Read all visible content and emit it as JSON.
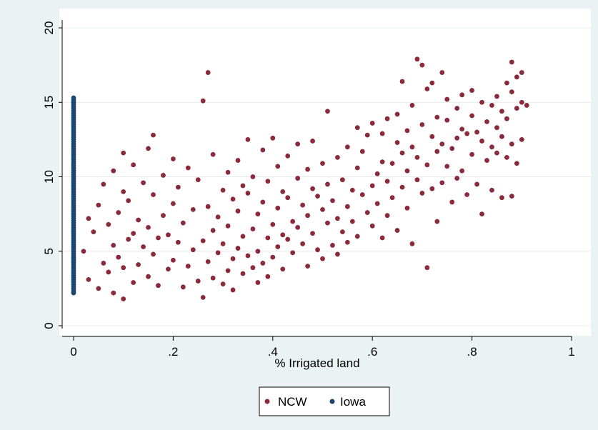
{
  "chart_data": {
    "type": "scatter",
    "xlabel": "% Irrigated land",
    "ylabel": "",
    "xlim": [
      0,
      1
    ],
    "ylim": [
      0,
      20
    ],
    "x_ticks": [
      {
        "value": 0,
        "label": "0"
      },
      {
        "value": 0.2,
        "label": ".2"
      },
      {
        "value": 0.4,
        "label": ".4"
      },
      {
        "value": 0.6,
        "label": ".6"
      },
      {
        "value": 0.8,
        "label": ".8"
      },
      {
        "value": 1,
        "label": "1"
      }
    ],
    "y_ticks": [
      {
        "value": 0,
        "label": "0"
      },
      {
        "value": 5,
        "label": "5"
      },
      {
        "value": 10,
        "label": "10"
      },
      {
        "value": 15,
        "label": "15"
      },
      {
        "value": 20,
        "label": "20"
      }
    ],
    "grid": true,
    "legend_position": "bottom",
    "series": [
      {
        "name": "NCW",
        "color": "#8b2a3a",
        "points": [
          [
            0.02,
            5.0
          ],
          [
            0.03,
            7.2
          ],
          [
            0.03,
            3.1
          ],
          [
            0.04,
            6.3
          ],
          [
            0.05,
            8.1
          ],
          [
            0.05,
            2.5
          ],
          [
            0.06,
            4.2
          ],
          [
            0.06,
            9.5
          ],
          [
            0.07,
            3.6
          ],
          [
            0.07,
            6.8
          ],
          [
            0.08,
            2.2
          ],
          [
            0.08,
            5.4
          ],
          [
            0.08,
            10.4
          ],
          [
            0.09,
            4.6
          ],
          [
            0.09,
            7.6
          ],
          [
            0.1,
            1.8
          ],
          [
            0.1,
            3.9
          ],
          [
            0.1,
            9.0
          ],
          [
            0.1,
            11.6
          ],
          [
            0.11,
            5.8
          ],
          [
            0.11,
            8.4
          ],
          [
            0.12,
            2.9
          ],
          [
            0.12,
            6.2
          ],
          [
            0.12,
            10.8
          ],
          [
            0.13,
            4.1
          ],
          [
            0.13,
            7.1
          ],
          [
            0.14,
            5.3
          ],
          [
            0.14,
            9.6
          ],
          [
            0.15,
            3.3
          ],
          [
            0.15,
            6.6
          ],
          [
            0.15,
            11.9
          ],
          [
            0.16,
            4.8
          ],
          [
            0.16,
            8.8
          ],
          [
            0.16,
            12.8
          ],
          [
            0.17,
            2.7
          ],
          [
            0.17,
            5.9
          ],
          [
            0.18,
            7.4
          ],
          [
            0.18,
            10.1
          ],
          [
            0.19,
            3.8
          ],
          [
            0.19,
            6.1
          ],
          [
            0.2,
            4.4
          ],
          [
            0.2,
            8.2
          ],
          [
            0.2,
            11.2
          ],
          [
            0.21,
            5.6
          ],
          [
            0.21,
            9.3
          ],
          [
            0.22,
            2.6
          ],
          [
            0.22,
            6.9
          ],
          [
            0.23,
            4.0
          ],
          [
            0.23,
            10.6
          ],
          [
            0.24,
            5.1
          ],
          [
            0.24,
            7.8
          ],
          [
            0.25,
            3.0
          ],
          [
            0.25,
            9.8
          ],
          [
            0.26,
            1.9
          ],
          [
            0.26,
            5.7
          ],
          [
            0.26,
            15.1
          ],
          [
            0.27,
            17.0
          ],
          [
            0.27,
            4.3
          ],
          [
            0.27,
            8.0
          ],
          [
            0.28,
            6.4
          ],
          [
            0.28,
            3.2
          ],
          [
            0.28,
            11.5
          ],
          [
            0.29,
            4.9
          ],
          [
            0.29,
            7.3
          ],
          [
            0.3,
            2.8
          ],
          [
            0.3,
            5.5
          ],
          [
            0.3,
            9.1
          ],
          [
            0.31,
            3.7
          ],
          [
            0.31,
            6.7
          ],
          [
            0.31,
            10.3
          ],
          [
            0.32,
            4.5
          ],
          [
            0.32,
            8.5
          ],
          [
            0.32,
            2.4
          ],
          [
            0.33,
            5.2
          ],
          [
            0.33,
            7.7
          ],
          [
            0.33,
            11.1
          ],
          [
            0.34,
            3.5
          ],
          [
            0.34,
            6.0
          ],
          [
            0.34,
            9.4
          ],
          [
            0.35,
            4.7
          ],
          [
            0.35,
            8.9
          ],
          [
            0.35,
            12.5
          ],
          [
            0.36,
            3.9
          ],
          [
            0.36,
            6.5
          ],
          [
            0.36,
            10.0
          ],
          [
            0.37,
            5.0
          ],
          [
            0.37,
            7.5
          ],
          [
            0.37,
            2.9
          ],
          [
            0.38,
            4.2
          ],
          [
            0.38,
            8.3
          ],
          [
            0.38,
            11.8
          ],
          [
            0.39,
            5.9
          ],
          [
            0.39,
            9.7
          ],
          [
            0.39,
            3.3
          ],
          [
            0.4,
            6.8
          ],
          [
            0.4,
            4.6
          ],
          [
            0.4,
            12.6
          ],
          [
            0.41,
            7.9
          ],
          [
            0.41,
            5.3
          ],
          [
            0.41,
            10.7
          ],
          [
            0.42,
            6.1
          ],
          [
            0.42,
            9.0
          ],
          [
            0.42,
            3.8
          ],
          [
            0.43,
            8.6
          ],
          [
            0.43,
            5.8
          ],
          [
            0.43,
            11.4
          ],
          [
            0.44,
            7.0
          ],
          [
            0.44,
            4.9
          ],
          [
            0.45,
            9.9
          ],
          [
            0.45,
            6.6
          ],
          [
            0.45,
            12.2
          ],
          [
            0.46,
            5.5
          ],
          [
            0.46,
            8.1
          ],
          [
            0.47,
            7.4
          ],
          [
            0.47,
            10.5
          ],
          [
            0.47,
            4.0
          ],
          [
            0.48,
            6.2
          ],
          [
            0.48,
            9.2
          ],
          [
            0.48,
            12.4
          ],
          [
            0.49,
            5.1
          ],
          [
            0.49,
            8.7
          ],
          [
            0.5,
            7.8
          ],
          [
            0.5,
            10.9
          ],
          [
            0.5,
            4.5
          ],
          [
            0.51,
            6.9
          ],
          [
            0.51,
            9.5
          ],
          [
            0.51,
            14.4
          ],
          [
            0.52,
            5.4
          ],
          [
            0.52,
            8.4
          ],
          [
            0.53,
            7.2
          ],
          [
            0.53,
            11.3
          ],
          [
            0.53,
            4.8
          ],
          [
            0.54,
            9.8
          ],
          [
            0.54,
            6.3
          ],
          [
            0.55,
            8.0
          ],
          [
            0.55,
            12.0
          ],
          [
            0.55,
            5.6
          ],
          [
            0.56,
            9.1
          ],
          [
            0.56,
            7.0
          ],
          [
            0.57,
            10.6
          ],
          [
            0.57,
            13.3
          ],
          [
            0.57,
            6.0
          ],
          [
            0.58,
            8.8
          ],
          [
            0.58,
            11.7
          ],
          [
            0.59,
            7.6
          ],
          [
            0.59,
            12.8
          ],
          [
            0.6,
            9.4
          ],
          [
            0.6,
            6.7
          ],
          [
            0.6,
            13.6
          ],
          [
            0.61,
            10.2
          ],
          [
            0.61,
            8.2
          ],
          [
            0.62,
            11.0
          ],
          [
            0.62,
            12.9
          ],
          [
            0.62,
            5.9
          ],
          [
            0.63,
            9.7
          ],
          [
            0.63,
            13.9
          ],
          [
            0.63,
            7.4
          ],
          [
            0.64,
            10.9
          ],
          [
            0.64,
            8.6
          ],
          [
            0.65,
            12.3
          ],
          [
            0.65,
            14.2
          ],
          [
            0.65,
            6.4
          ],
          [
            0.66,
            9.3
          ],
          [
            0.66,
            11.6
          ],
          [
            0.66,
            16.4
          ],
          [
            0.67,
            10.4
          ],
          [
            0.67,
            13.1
          ],
          [
            0.67,
            7.9
          ],
          [
            0.68,
            12.0
          ],
          [
            0.68,
            14.8
          ],
          [
            0.68,
            5.5
          ],
          [
            0.69,
            9.8
          ],
          [
            0.69,
            17.9
          ],
          [
            0.69,
            11.3
          ],
          [
            0.7,
            13.5
          ],
          [
            0.7,
            17.5
          ],
          [
            0.7,
            8.9
          ],
          [
            0.71,
            10.8
          ],
          [
            0.71,
            3.9
          ],
          [
            0.71,
            15.9
          ],
          [
            0.72,
            12.7
          ],
          [
            0.72,
            9.2
          ],
          [
            0.72,
            16.3
          ],
          [
            0.73,
            11.7
          ],
          [
            0.73,
            14.0
          ],
          [
            0.73,
            7.0
          ],
          [
            0.74,
            12.2
          ],
          [
            0.74,
            17.0
          ],
          [
            0.74,
            9.6
          ],
          [
            0.75,
            13.8
          ],
          [
            0.75,
            10.7
          ],
          [
            0.75,
            15.2
          ],
          [
            0.76,
            11.9
          ],
          [
            0.76,
            8.3
          ],
          [
            0.77,
            14.6
          ],
          [
            0.77,
            12.6
          ],
          [
            0.77,
            9.9
          ],
          [
            0.78,
            13.2
          ],
          [
            0.78,
            15.5
          ],
          [
            0.78,
            10.4
          ],
          [
            0.79,
            12.9
          ],
          [
            0.79,
            8.8
          ],
          [
            0.8,
            14.1
          ],
          [
            0.8,
            11.5
          ],
          [
            0.8,
            15.8
          ],
          [
            0.81,
            13.0
          ],
          [
            0.81,
            9.5
          ],
          [
            0.82,
            12.4
          ],
          [
            0.82,
            15.0
          ],
          [
            0.82,
            7.5
          ],
          [
            0.83,
            13.7
          ],
          [
            0.83,
            11.1
          ],
          [
            0.84,
            14.8
          ],
          [
            0.84,
            12.0
          ],
          [
            0.84,
            9.1
          ],
          [
            0.85,
            15.4
          ],
          [
            0.85,
            13.3
          ],
          [
            0.85,
            11.6
          ],
          [
            0.86,
            14.4
          ],
          [
            0.86,
            12.7
          ],
          [
            0.86,
            8.6
          ],
          [
            0.87,
            16.3
          ],
          [
            0.87,
            13.9
          ],
          [
            0.87,
            11.3
          ],
          [
            0.88,
            15.7
          ],
          [
            0.88,
            17.7
          ],
          [
            0.88,
            12.2
          ],
          [
            0.88,
            8.7
          ],
          [
            0.89,
            16.7
          ],
          [
            0.89,
            14.6
          ],
          [
            0.89,
            10.9
          ],
          [
            0.9,
            17.0
          ],
          [
            0.9,
            15.0
          ],
          [
            0.9,
            12.5
          ],
          [
            0.91,
            14.8
          ]
        ]
      },
      {
        "name": "Iowa",
        "color": "#1a476f",
        "x_value": 0,
        "y_range": [
          2.2,
          15.3
        ]
      }
    ]
  }
}
